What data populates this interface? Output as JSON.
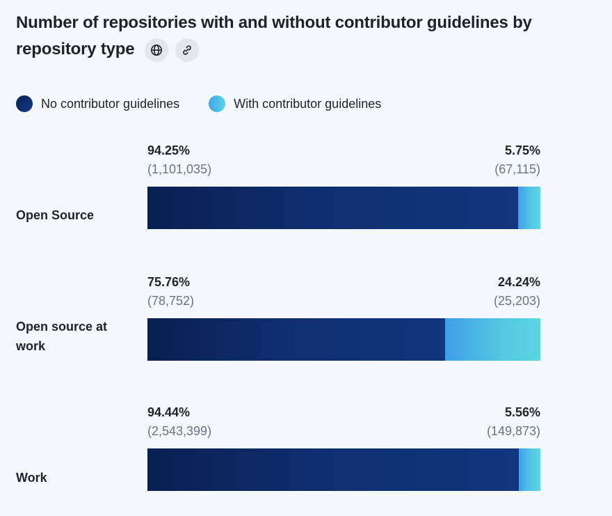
{
  "chart_data": {
    "type": "bar",
    "orientation": "horizontal",
    "stacked": true,
    "title": "Number of repositories with and without contributor guidelines by repository type",
    "categories": [
      "Open Source",
      "Open source at work",
      "Work"
    ],
    "series": [
      {
        "name": "No contributor guidelines",
        "color": "#0f2e6e",
        "values": [
          94.25,
          75.76,
          94.44
        ],
        "percent_labels": [
          "94.25%",
          "75.76%",
          "94.44%"
        ],
        "count_labels": [
          "(1,101,035)",
          "(78,752)",
          "(2,543,399)"
        ]
      },
      {
        "name": "With contributor guidelines",
        "color": "#4cc0e4",
        "values": [
          5.75,
          24.24,
          5.56
        ],
        "percent_labels": [
          "5.75%",
          "24.24%",
          "5.56%"
        ],
        "count_labels": [
          "(67,115)",
          "(25,203)",
          "(149,873)"
        ]
      }
    ],
    "xlim": [
      0,
      100
    ],
    "legend_position": "top-left",
    "grid": false
  },
  "header": {
    "globe_icon": "globe-icon",
    "link_icon": "link-icon"
  }
}
